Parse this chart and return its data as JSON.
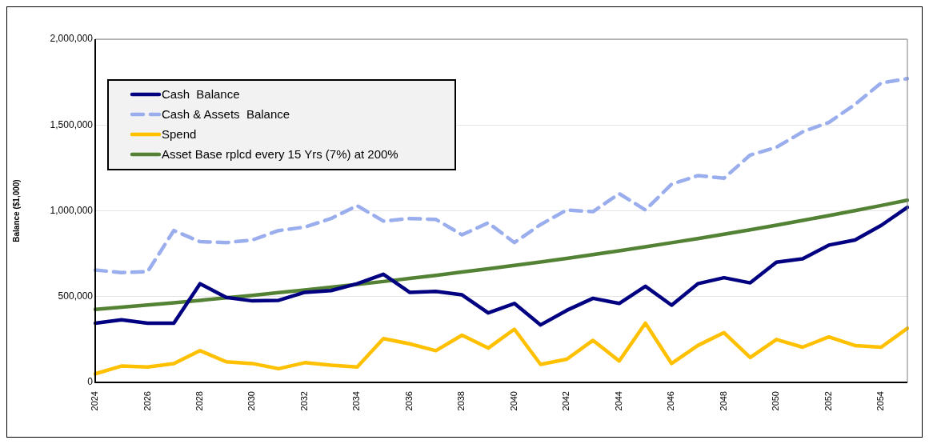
{
  "chart_data": {
    "type": "line",
    "ylabel": "Balance ($1,000)",
    "categories": [
      "2024",
      null,
      "2026",
      null,
      "2028",
      null,
      "2030",
      null,
      "2032",
      null,
      "2034",
      null,
      "2036",
      null,
      "2038",
      null,
      "2040",
      null,
      "2042",
      null,
      "2044",
      null,
      "2046",
      null,
      "2048",
      null,
      "2050",
      null,
      "2052",
      null,
      "2054",
      null
    ],
    "ylim": [
      0,
      2000000
    ],
    "yticks": [
      {
        "value": 0,
        "label": "0"
      },
      {
        "value": 500000,
        "label": "500,000"
      },
      {
        "value": 1000000,
        "label": "1,000,000"
      },
      {
        "value": 1500000,
        "label": "1,500,000"
      },
      {
        "value": 2000000,
        "label": "2,000,000"
      }
    ],
    "grid": "y",
    "legend": "top left",
    "marker": "none",
    "series": [
      {
        "name": "Cash  Balance",
        "color": "#000080",
        "line_style": "solid",
        "values": [
          345000,
          365000,
          345000,
          345000,
          575000,
          495000,
          475000,
          478000,
          525000,
          535000,
          575000,
          630000,
          525000,
          530000,
          510000,
          405000,
          460000,
          335000,
          420000,
          490000,
          460000,
          560000,
          450000,
          575000,
          610000,
          580000,
          700000,
          720000,
          800000,
          830000,
          915000,
          1020000
        ]
      },
      {
        "name": "Cash & Assets  Balance",
        "color": "#9aaeee",
        "line_style": "dashed",
        "values": [
          655000,
          640000,
          645000,
          885000,
          820000,
          815000,
          830000,
          885000,
          905000,
          955000,
          1030000,
          940000,
          955000,
          950000,
          860000,
          930000,
          815000,
          920000,
          1005000,
          995000,
          1100000,
          1005000,
          1155000,
          1205000,
          1190000,
          1325000,
          1370000,
          1460000,
          1515000,
          1620000,
          1745000,
          1770000
        ]
      },
      {
        "name": "Spend",
        "color": "#ffc000",
        "line_style": "solid",
        "values": [
          50000,
          95000,
          90000,
          110000,
          185000,
          120000,
          110000,
          80000,
          115000,
          100000,
          90000,
          255000,
          225000,
          185000,
          275000,
          200000,
          310000,
          105000,
          135000,
          245000,
          125000,
          345000,
          110000,
          215000,
          290000,
          145000,
          250000,
          205000,
          265000,
          215000,
          205000,
          315000
        ]
      },
      {
        "name": "Asset Base rplcd every 15 Yrs (7%) at 200%",
        "color": "#548235",
        "line_style": "solid",
        "values": [
          425000,
          438000,
          451000,
          464000,
          478000,
          493000,
          507000,
          523000,
          538000,
          555000,
          571000,
          588000,
          606000,
          624000,
          643000,
          662000,
          682000,
          702000,
          723000,
          745000,
          767000,
          790000,
          814000,
          838000,
          864000,
          889000,
          916000,
          944000,
          972000,
          1001000,
          1031000,
          1062000
        ]
      }
    ]
  }
}
